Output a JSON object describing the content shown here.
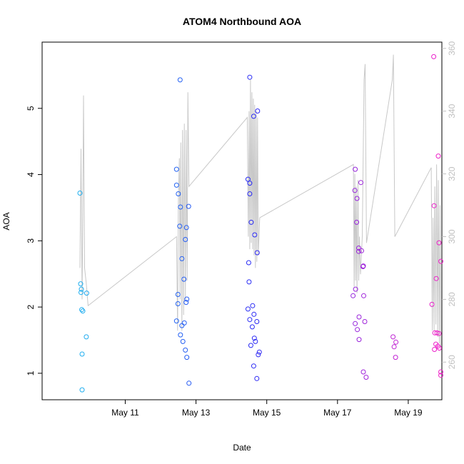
{
  "chart_data": {
    "type": "scatter",
    "title": "ATOM4 Northbound AOA",
    "xlabel": "Date",
    "ylabel": "AOA",
    "y2label": "",
    "xlim": [
      8.65,
      19.95
    ],
    "ylim": [
      0.6,
      6.0
    ],
    "y2lim": [
      248,
      362
    ],
    "x_ticks": [
      11,
      13,
      15,
      17,
      19
    ],
    "x_tick_labels": [
      "May 11",
      "May 13",
      "May 15",
      "May 17",
      "May 19"
    ],
    "y_ticks": [
      1,
      2,
      3,
      4,
      5
    ],
    "y_tick_labels": [
      "1",
      "2",
      "3",
      "4",
      "5"
    ],
    "y2_ticks": [
      260,
      280,
      300,
      320,
      340,
      360
    ],
    "y2_tick_labels": [
      "260",
      "280",
      "300",
      "320",
      "340",
      "360"
    ],
    "grid": false,
    "legend": "none",
    "colors": {
      "early": "#1fb0f0",
      "mid": "#2a2af5",
      "late": "#f020c8",
      "secondary_line": "#c8c8c8",
      "secondary_axis": "#c0c0c0"
    },
    "series": [
      {
        "role": "aoa-points",
        "axis": "left",
        "points": [
          [
            9.72,
            3.72
          ],
          [
            9.74,
            2.35
          ],
          [
            9.76,
            2.27
          ],
          [
            9.75,
            2.22
          ],
          [
            9.77,
            1.96
          ],
          [
            9.8,
            1.94
          ],
          [
            9.91,
            2.21
          ],
          [
            9.9,
            1.55
          ],
          [
            9.78,
            1.29
          ],
          [
            9.78,
            0.75
          ],
          [
            12.55,
            5.43
          ],
          [
            12.45,
            4.08
          ],
          [
            12.45,
            3.84
          ],
          [
            12.5,
            3.71
          ],
          [
            12.56,
            3.51
          ],
          [
            12.54,
            3.22
          ],
          [
            12.79,
            3.52
          ],
          [
            12.73,
            3.2
          ],
          [
            12.7,
            3.02
          ],
          [
            12.6,
            2.73
          ],
          [
            12.66,
            2.42
          ],
          [
            12.49,
            2.19
          ],
          [
            12.49,
            2.05
          ],
          [
            12.74,
            2.12
          ],
          [
            12.72,
            2.07
          ],
          [
            12.45,
            1.79
          ],
          [
            12.67,
            1.76
          ],
          [
            12.6,
            1.72
          ],
          [
            12.56,
            1.58
          ],
          [
            12.63,
            1.48
          ],
          [
            12.7,
            1.35
          ],
          [
            12.74,
            1.24
          ],
          [
            12.8,
            0.85
          ],
          [
            14.52,
            5.47
          ],
          [
            14.63,
            4.88
          ],
          [
            14.74,
            4.96
          ],
          [
            14.47,
            3.93
          ],
          [
            14.52,
            3.87
          ],
          [
            14.52,
            3.71
          ],
          [
            14.56,
            3.28
          ],
          [
            14.66,
            3.09
          ],
          [
            14.73,
            2.82
          ],
          [
            14.49,
            2.67
          ],
          [
            14.5,
            2.38
          ],
          [
            14.6,
            2.02
          ],
          [
            14.47,
            1.97
          ],
          [
            14.64,
            1.89
          ],
          [
            14.52,
            1.81
          ],
          [
            14.72,
            1.78
          ],
          [
            14.59,
            1.7
          ],
          [
            14.65,
            1.53
          ],
          [
            14.68,
            1.48
          ],
          [
            14.55,
            1.42
          ],
          [
            14.79,
            1.32
          ],
          [
            14.76,
            1.28
          ],
          [
            14.63,
            1.11
          ],
          [
            14.72,
            0.92
          ],
          [
            17.5,
            4.08
          ],
          [
            17.49,
            3.76
          ],
          [
            17.55,
            3.64
          ],
          [
            17.66,
            3.88
          ],
          [
            17.54,
            3.28
          ],
          [
            17.6,
            2.89
          ],
          [
            17.6,
            2.84
          ],
          [
            17.68,
            2.85
          ],
          [
            17.73,
            2.62
          ],
          [
            17.72,
            2.61
          ],
          [
            17.74,
            2.17
          ],
          [
            17.51,
            2.27
          ],
          [
            17.44,
            2.17
          ],
          [
            17.61,
            1.85
          ],
          [
            17.77,
            1.78
          ],
          [
            17.5,
            1.75
          ],
          [
            17.56,
            1.66
          ],
          [
            17.61,
            1.51
          ],
          [
            17.73,
            1.02
          ],
          [
            17.81,
            0.94
          ],
          [
            18.57,
            1.55
          ],
          [
            18.65,
            1.47
          ],
          [
            18.6,
            1.4
          ],
          [
            18.64,
            1.24
          ],
          [
            19.72,
            5.78
          ],
          [
            19.85,
            4.28
          ],
          [
            19.73,
            3.53
          ],
          [
            19.87,
            2.97
          ],
          [
            19.92,
            2.69
          ],
          [
            19.79,
            2.43
          ],
          [
            19.67,
            2.04
          ],
          [
            19.75,
            1.61
          ],
          [
            19.81,
            1.61
          ],
          [
            19.87,
            1.6
          ],
          [
            19.78,
            1.44
          ],
          [
            19.84,
            1.41
          ],
          [
            19.88,
            1.38
          ],
          [
            19.74,
            1.36
          ],
          [
            19.92,
            1.02
          ],
          [
            19.92,
            0.97
          ]
        ]
      },
      {
        "role": "secondary-line",
        "axis": "right",
        "points": [
          [
            9.72,
            290
          ],
          [
            9.75,
            328
          ],
          [
            9.78,
            280
          ],
          [
            9.8,
            306
          ],
          [
            9.82,
            345
          ],
          [
            9.85,
            290
          ],
          [
            9.9,
            285
          ],
          [
            9.95,
            278
          ],
          [
            12.45,
            300
          ],
          [
            12.48,
            270
          ],
          [
            12.5,
            310
          ],
          [
            12.53,
            325
          ],
          [
            12.55,
            280
          ],
          [
            12.57,
            330
          ],
          [
            12.6,
            270
          ],
          [
            12.62,
            334
          ],
          [
            12.65,
            275
          ],
          [
            12.67,
            336
          ],
          [
            12.7,
            280
          ],
          [
            12.72,
            334
          ],
          [
            12.75,
            286
          ],
          [
            12.77,
            346
          ],
          [
            12.8,
            316
          ],
          [
            14.45,
            338
          ],
          [
            14.48,
            300
          ],
          [
            14.5,
            340
          ],
          [
            14.52,
            296
          ],
          [
            14.54,
            350
          ],
          [
            14.56,
            298
          ],
          [
            14.58,
            346
          ],
          [
            14.6,
            296
          ],
          [
            14.62,
            344
          ],
          [
            14.64,
            294
          ],
          [
            14.66,
            342
          ],
          [
            14.68,
            290
          ],
          [
            14.7,
            340
          ],
          [
            14.72,
            292
          ],
          [
            14.74,
            338
          ],
          [
            14.76,
            294
          ],
          [
            14.8,
            306
          ],
          [
            17.45,
            323
          ],
          [
            17.47,
            284
          ],
          [
            17.49,
            320
          ],
          [
            17.51,
            286
          ],
          [
            17.53,
            316
          ],
          [
            17.55,
            282
          ],
          [
            17.58,
            318
          ],
          [
            17.6,
            286
          ],
          [
            17.62,
            300
          ],
          [
            17.65,
            288
          ],
          [
            17.7,
            300
          ],
          [
            17.75,
            350
          ],
          [
            17.78,
            355
          ],
          [
            17.82,
            298
          ],
          [
            18.55,
            350
          ],
          [
            18.58,
            358
          ],
          [
            18.62,
            300
          ],
          [
            19.65,
            322
          ],
          [
            19.68,
            270
          ],
          [
            19.7,
            306
          ],
          [
            19.73,
            270
          ],
          [
            19.75,
            316
          ],
          [
            19.78,
            272
          ],
          [
            19.8,
            323
          ],
          [
            19.83,
            268
          ],
          [
            19.85,
            318
          ],
          [
            19.88,
            266
          ],
          [
            19.9,
            310
          ],
          [
            19.92,
            264
          ]
        ]
      }
    ]
  }
}
